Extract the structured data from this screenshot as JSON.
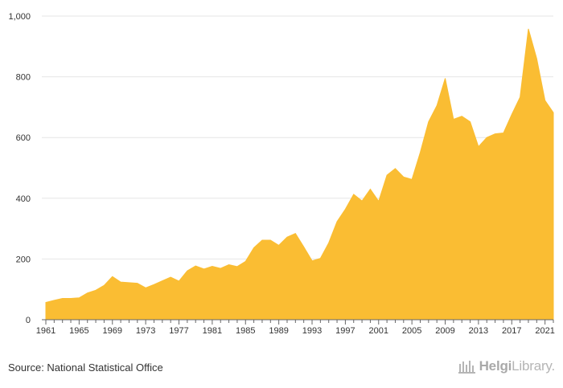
{
  "chart_data": {
    "type": "area",
    "title": "",
    "xlabel": "",
    "ylabel": "",
    "ylim": [
      0,
      1000
    ],
    "yticks": [
      0,
      200,
      400,
      600,
      800,
      1000
    ],
    "ytick_labels": [
      "0",
      "200",
      "400",
      "600",
      "800",
      "1,000"
    ],
    "xlim": [
      1961,
      2022
    ],
    "xticks": [
      1961,
      1965,
      1969,
      1973,
      1977,
      1981,
      1985,
      1989,
      1993,
      1997,
      2001,
      2005,
      2009,
      2013,
      2017,
      2021
    ],
    "grid": true,
    "legend": "none",
    "x": [
      1961,
      1962,
      1963,
      1964,
      1965,
      1966,
      1967,
      1968,
      1969,
      1970,
      1971,
      1972,
      1973,
      1974,
      1975,
      1976,
      1977,
      1978,
      1979,
      1980,
      1981,
      1982,
      1983,
      1984,
      1985,
      1986,
      1987,
      1988,
      1989,
      1990,
      1991,
      1992,
      1993,
      1994,
      1995,
      1996,
      1997,
      1998,
      1999,
      2000,
      2001,
      2002,
      2003,
      2004,
      2005,
      2006,
      2007,
      2008,
      2009,
      2010,
      2011,
      2012,
      2013,
      2014,
      2015,
      2016,
      2017,
      2018,
      2019,
      2020,
      2021,
      2022
    ],
    "series": [
      {
        "values": [
          57,
          64,
          70,
          70,
          72,
          88,
          97,
          113,
          142,
          124,
          122,
          120,
          105,
          116,
          128,
          140,
          127,
          161,
          177,
          167,
          176,
          169,
          181,
          175,
          192,
          237,
          262,
          262,
          245,
          272,
          284,
          240,
          194,
          202,
          253,
          323,
          364,
          413,
          391,
          430,
          390,
          476,
          498,
          470,
          462,
          551,
          652,
          705,
          795,
          660,
          670,
          652,
          570,
          600,
          612,
          615,
          676,
          733,
          958,
          860,
          722,
          682
        ]
      }
    ],
    "color": "#fabd33"
  },
  "footer": {
    "source": "Source: National Statistical Office"
  },
  "logo": {
    "part1": "Helgi",
    "part2": "Library."
  }
}
